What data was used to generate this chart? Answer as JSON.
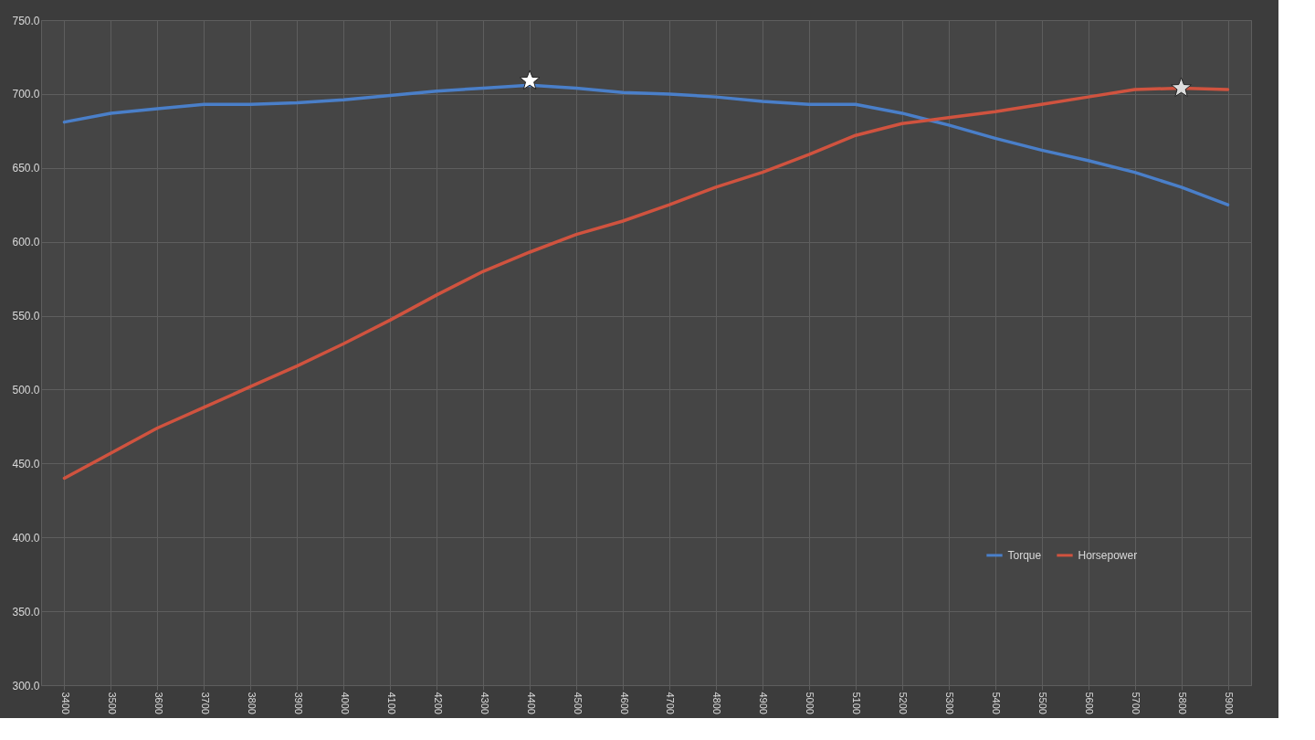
{
  "chart_data": {
    "type": "line",
    "categories": [
      "3400",
      "3500",
      "3600",
      "3700",
      "3800",
      "3900",
      "4000",
      "4100",
      "4200",
      "4300",
      "4400",
      "4500",
      "4600",
      "4700",
      "4800",
      "4900",
      "5000",
      "5100",
      "5200",
      "5300",
      "5400",
      "5500",
      "5600",
      "5700",
      "5800",
      "5900"
    ],
    "series": [
      {
        "name": "Torque",
        "color": "#4a7fc9",
        "values": [
          681,
          687,
          690,
          693,
          693,
          694,
          696,
          699,
          702,
          704,
          706,
          704,
          701,
          700,
          698,
          695,
          693,
          693,
          687,
          679,
          670,
          662,
          655,
          647,
          637,
          625
        ]
      },
      {
        "name": "Horsepower",
        "color": "#d0533f",
        "values": [
          440,
          457,
          474,
          488,
          502,
          516,
          531,
          547,
          564,
          580,
          593,
          605,
          614,
          625,
          637,
          647,
          659,
          672,
          680,
          684,
          688,
          693,
          698,
          703,
          704,
          703
        ]
      },
      {
        "type": "scatter",
        "color": "#ffffff",
        "marker": "star",
        "values": [
          null,
          null,
          null,
          null,
          null,
          null,
          null,
          null,
          null,
          null,
          709,
          null,
          null,
          null,
          null,
          null,
          null,
          null,
          null,
          null,
          null,
          null,
          null,
          null,
          null,
          null
        ]
      },
      {
        "type": "scatter",
        "color": "#dcdcdc",
        "marker": "star",
        "values": [
          null,
          null,
          null,
          null,
          null,
          null,
          null,
          null,
          null,
          null,
          null,
          null,
          null,
          null,
          null,
          null,
          null,
          null,
          null,
          null,
          null,
          null,
          null,
          null,
          704,
          null
        ]
      }
    ],
    "ylim": [
      300,
      750
    ],
    "yticks": [
      {
        "value": 300,
        "label": "300.0"
      },
      {
        "value": 350,
        "label": "350.0"
      },
      {
        "value": 400,
        "label": "400.0"
      },
      {
        "value": 450,
        "label": "450.0"
      },
      {
        "value": 500,
        "label": "500.0"
      },
      {
        "value": 550,
        "label": "550.0"
      },
      {
        "value": 600,
        "label": "600.0"
      },
      {
        "value": 650,
        "label": "650.0"
      },
      {
        "value": 700,
        "label": "700.0"
      },
      {
        "value": 750,
        "label": "750.0"
      }
    ],
    "grid": true,
    "legend": "bottom right",
    "marker": "none",
    "line_style": "solid"
  }
}
